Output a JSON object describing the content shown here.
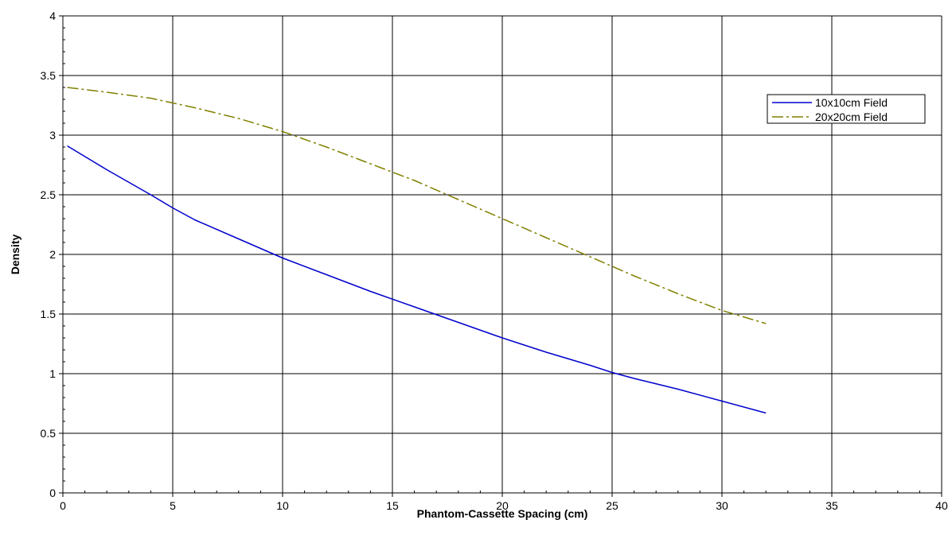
{
  "chart_data": {
    "type": "line",
    "title": "",
    "xlabel": "Phantom-Cassette Spacing (cm)",
    "ylabel": "Density",
    "xlim": [
      0,
      40
    ],
    "ylim": [
      0,
      4
    ],
    "x_ticks": [
      "0",
      "5",
      "10",
      "15",
      "20",
      "25",
      "30",
      "35",
      "40"
    ],
    "y_ticks": [
      "0",
      "0.5",
      "1",
      "1.5",
      "2",
      "2.5",
      "3",
      "3.5",
      "4"
    ],
    "grid": true,
    "legend_position": "top-right",
    "series": [
      {
        "name": "10x10cm Field",
        "color": "#0000cc",
        "line_style": "solid",
        "x": [
          0.2,
          2,
          4,
          5,
          6,
          8,
          10,
          12,
          14,
          16,
          18,
          20,
          22,
          24,
          25,
          26,
          28,
          30,
          32
        ],
        "y": [
          2.91,
          2.71,
          2.5,
          2.39,
          2.29,
          2.13,
          1.97,
          1.83,
          1.69,
          1.56,
          1.43,
          1.3,
          1.18,
          1.07,
          1.01,
          0.96,
          0.87,
          0.77,
          0.67
        ]
      },
      {
        "name": "20x20cm Field",
        "color": "#808000",
        "line_style": "dash-dot",
        "x": [
          0.2,
          2,
          4,
          5,
          6,
          8,
          10,
          12,
          14,
          16,
          18,
          20,
          22,
          24,
          26,
          28,
          30,
          32
        ],
        "y": [
          3.4,
          3.36,
          3.31,
          3.27,
          3.23,
          3.14,
          3.03,
          2.9,
          2.76,
          2.62,
          2.46,
          2.3,
          2.14,
          1.98,
          1.82,
          1.67,
          1.53,
          1.42
        ]
      }
    ]
  }
}
